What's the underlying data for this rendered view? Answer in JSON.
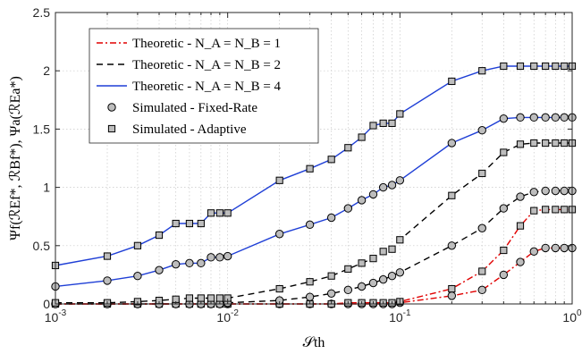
{
  "chart_data": {
    "type": "line",
    "xscale": "log",
    "xlim": [
      0.001,
      1
    ],
    "ylim": [
      0,
      2.5
    ],
    "grid": true,
    "legend_position": "top-left",
    "xlabel": "𝒮th",
    "ylabel": "Ψf(ℛEf*, ℛBf*), Ψa(ℛEa*)",
    "x_ticks": [
      0.001,
      0.01,
      0.1,
      1
    ],
    "x_tick_labels": [
      {
        "base": "10",
        "exp": "-3"
      },
      {
        "base": "10",
        "exp": "-2"
      },
      {
        "base": "10",
        "exp": "-1"
      },
      {
        "base": "10",
        "exp": "0"
      }
    ],
    "y_ticks": [
      0,
      0.5,
      1,
      1.5,
      2,
      2.5
    ],
    "y_tick_labels": [
      "0",
      "0.5",
      "1",
      "1.5",
      "2",
      "2.5"
    ],
    "legend": [
      {
        "label": "Theoretic - N_A = N_B = 1",
        "style": "dash-dot",
        "color": "#e00000",
        "marker": "none"
      },
      {
        "label": "Theoretic - N_A = N_B = 2",
        "style": "dashed",
        "color": "#000000",
        "marker": "none"
      },
      {
        "label": "Theoretic - N_A = N_B = 4",
        "style": "solid",
        "color": "#1f3fd6",
        "marker": "none"
      },
      {
        "label": "Simulated - Fixed-Rate",
        "style": "none",
        "color": "#000000",
        "marker": "circle"
      },
      {
        "label": "Simulated - Adaptive",
        "style": "none",
        "color": "#000000",
        "marker": "square"
      }
    ],
    "x": [
      0.001,
      0.002,
      0.003,
      0.004,
      0.005,
      0.006,
      0.007,
      0.008,
      0.009,
      0.01,
      0.02,
      0.03,
      0.04,
      0.05,
      0.06,
      0.07,
      0.08,
      0.09,
      0.1,
      0.2,
      0.3,
      0.4,
      0.5,
      0.6,
      0.7,
      0.8,
      0.9,
      1.0
    ],
    "series": [
      {
        "curve": "N1",
        "method": "fixed",
        "color": "#e00000",
        "style": "dash-dot",
        "marker": "circle",
        "values": [
          0,
          0,
          0,
          0,
          0,
          0,
          0,
          0,
          0,
          0,
          0,
          0,
          0,
          0,
          0,
          0,
          0,
          0,
          0.01,
          0.07,
          0.12,
          0.25,
          0.36,
          0.45,
          0.48,
          0.48,
          0.48,
          0.48
        ]
      },
      {
        "curve": "N1",
        "method": "adaptive",
        "color": "#e00000",
        "style": "dash-dot",
        "marker": "square",
        "values": [
          0,
          0,
          0,
          0,
          0,
          0,
          0,
          0,
          0,
          0,
          0,
          0,
          0,
          0.01,
          0.01,
          0.01,
          0.01,
          0.01,
          0.02,
          0.13,
          0.28,
          0.46,
          0.67,
          0.8,
          0.81,
          0.81,
          0.81,
          0.81
        ]
      },
      {
        "curve": "N2",
        "method": "fixed",
        "color": "#000000",
        "style": "dashed",
        "marker": "circle",
        "values": [
          0,
          0,
          0,
          0,
          0,
          0,
          0,
          0,
          0,
          0.01,
          0.03,
          0.06,
          0.09,
          0.12,
          0.15,
          0.18,
          0.21,
          0.24,
          0.27,
          0.5,
          0.65,
          0.82,
          0.92,
          0.96,
          0.97,
          0.97,
          0.97,
          0.97
        ]
      },
      {
        "curve": "N2",
        "method": "adaptive",
        "color": "#000000",
        "style": "dashed",
        "marker": "square",
        "values": [
          0.01,
          0.01,
          0.02,
          0.03,
          0.04,
          0.05,
          0.05,
          0.05,
          0.05,
          0.05,
          0.13,
          0.19,
          0.24,
          0.3,
          0.35,
          0.39,
          0.45,
          0.47,
          0.55,
          0.93,
          1.12,
          1.3,
          1.37,
          1.38,
          1.38,
          1.38,
          1.38,
          1.38
        ]
      },
      {
        "curve": "N4",
        "method": "fixed",
        "color": "#1f3fd6",
        "style": "solid",
        "marker": "circle",
        "values": [
          0.15,
          0.2,
          0.24,
          0.29,
          0.34,
          0.35,
          0.35,
          0.4,
          0.4,
          0.41,
          0.6,
          0.68,
          0.74,
          0.82,
          0.89,
          0.94,
          1.0,
          1.02,
          1.06,
          1.38,
          1.49,
          1.59,
          1.6,
          1.6,
          1.6,
          1.6,
          1.6,
          1.6
        ]
      },
      {
        "curve": "N4",
        "method": "adaptive",
        "color": "#1f3fd6",
        "style": "solid",
        "marker": "square",
        "values": [
          0.33,
          0.41,
          0.5,
          0.59,
          0.69,
          0.69,
          0.69,
          0.78,
          0.78,
          0.78,
          1.06,
          1.16,
          1.24,
          1.34,
          1.43,
          1.53,
          1.55,
          1.55,
          1.63,
          1.91,
          2.0,
          2.04,
          2.04,
          2.04,
          2.04,
          2.04,
          2.04,
          2.04
        ]
      }
    ]
  }
}
